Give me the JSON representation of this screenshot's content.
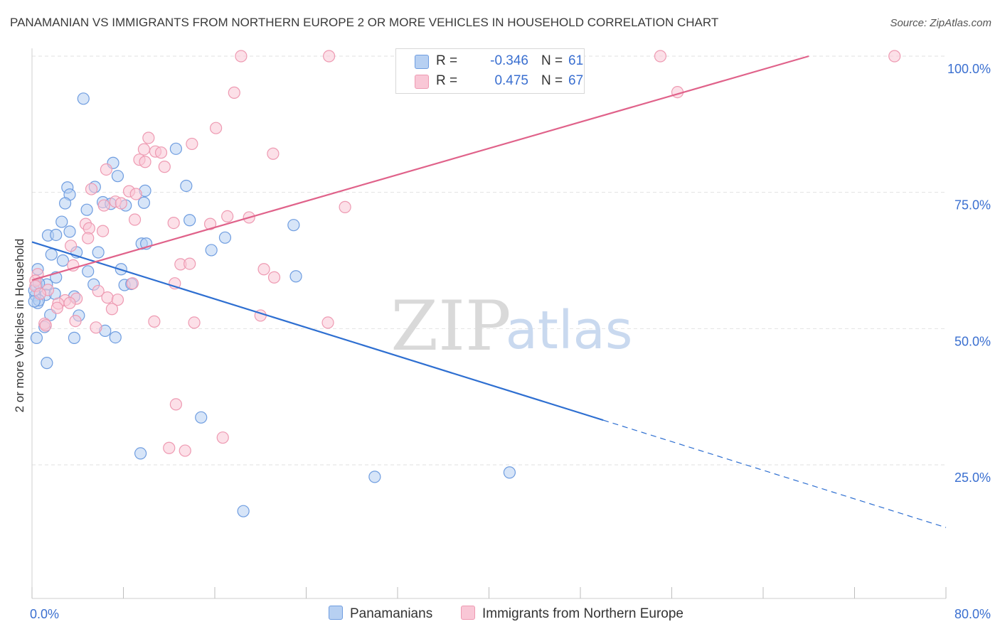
{
  "title": "PANAMANIAN VS IMMIGRANTS FROM NORTHERN EUROPE 2 OR MORE VEHICLES IN HOUSEHOLD CORRELATION CHART",
  "source": "Source: ZipAtlas.com",
  "watermark": {
    "zip": "ZIP",
    "atlas": "atlas"
  },
  "colors": {
    "blue_fill": "#b7d0f2",
    "blue_stroke": "#6f9de0",
    "blue_line": "#2e6fd1",
    "pink_fill": "#f9c7d6",
    "pink_stroke": "#ee9ab2",
    "pink_line": "#e0628a",
    "tick_label": "#3a6fd0",
    "grid": "#e2e2e2"
  },
  "legend": {
    "rows": [
      {
        "r_label": "R =",
        "r_value": "-0.346",
        "n_label": "N =",
        "n_value": "61",
        "color": "blue"
      },
      {
        "r_label": "R =",
        "r_value": "0.475",
        "n_label": "N =",
        "n_value": "67",
        "color": "pink"
      }
    ]
  },
  "bottom_legend": [
    "Panamanians",
    "Immigrants from Northern Europe"
  ],
  "chart_data": {
    "type": "scatter",
    "title": "PANAMANIAN VS IMMIGRANTS FROM NORTHERN EUROPE 2 OR MORE VEHICLES IN HOUSEHOLD CORRELATION CHART",
    "xlabel": "",
    "ylabel": "2 or more Vehicles in Household",
    "xlim": [
      0,
      80
    ],
    "ylim": [
      0,
      105
    ],
    "x_tick_labels": [
      "0.0%",
      "80.0%"
    ],
    "y_ticks": [
      25,
      50,
      75,
      100
    ],
    "y_tick_labels": [
      "25.0%",
      "50.0%",
      "75.0%",
      "100.0%"
    ],
    "grid": "horizontal dashed",
    "legend_position": "top-center",
    "series": [
      {
        "name": "Panamanians",
        "color": "blue",
        "r": -0.346,
        "n": 61,
        "trend": {
          "x0": 0,
          "y0": 65.9,
          "x1": 50,
          "y1": 33.2,
          "dashed_to_x": 80,
          "dashed_to_y": 13.5
        },
        "points": [
          [
            4.5,
            92.2
          ],
          [
            7.1,
            80.4
          ],
          [
            12.6,
            83.0
          ],
          [
            7.5,
            78.0
          ],
          [
            13.5,
            76.2
          ],
          [
            3.1,
            75.9
          ],
          [
            5.5,
            76.0
          ],
          [
            3.3,
            74.6
          ],
          [
            9.9,
            75.3
          ],
          [
            6.2,
            73.2
          ],
          [
            4.8,
            71.8
          ],
          [
            2.9,
            73.0
          ],
          [
            6.9,
            72.9
          ],
          [
            8.2,
            72.6
          ],
          [
            9.8,
            73.1
          ],
          [
            13.8,
            69.9
          ],
          [
            2.6,
            69.6
          ],
          [
            1.4,
            67.1
          ],
          [
            2.1,
            67.2
          ],
          [
            3.3,
            67.8
          ],
          [
            16.9,
            66.7
          ],
          [
            9.6,
            65.6
          ],
          [
            10.0,
            65.6
          ],
          [
            22.9,
            69.0
          ],
          [
            0.5,
            60.9
          ],
          [
            1.7,
            63.6
          ],
          [
            3.9,
            64.0
          ],
          [
            5.8,
            64.0
          ],
          [
            15.7,
            64.4
          ],
          [
            2.7,
            62.5
          ],
          [
            4.9,
            60.5
          ],
          [
            7.8,
            60.9
          ],
          [
            2.1,
            59.4
          ],
          [
            0.4,
            57.9
          ],
          [
            1.3,
            58.1
          ],
          [
            5.4,
            58.1
          ],
          [
            8.1,
            58.0
          ],
          [
            8.7,
            58.2
          ],
          [
            23.1,
            59.6
          ],
          [
            0.3,
            56.1
          ],
          [
            1.2,
            56.2
          ],
          [
            3.7,
            55.9
          ],
          [
            0.5,
            54.7
          ],
          [
            0.6,
            55.2
          ],
          [
            1.6,
            52.5
          ],
          [
            4.1,
            52.4
          ],
          [
            1.1,
            50.3
          ],
          [
            3.7,
            48.3
          ],
          [
            6.4,
            49.6
          ],
          [
            7.3,
            48.4
          ],
          [
            0.4,
            48.3
          ],
          [
            1.3,
            43.7
          ],
          [
            14.8,
            33.7
          ],
          [
            9.5,
            27.1
          ],
          [
            30.0,
            22.8
          ],
          [
            41.8,
            23.6
          ],
          [
            18.5,
            16.5
          ],
          [
            0.2,
            57.0
          ],
          [
            0.6,
            58.3
          ],
          [
            2.0,
            56.4
          ],
          [
            0.2,
            55.0
          ]
        ]
      },
      {
        "name": "Immigrants from Northern Europe",
        "color": "pink",
        "r": 0.475,
        "n": 67,
        "trend": {
          "x0": 0,
          "y0": 58.9,
          "x1": 68,
          "y1": 100.0
        },
        "points": [
          [
            18.3,
            100.0
          ],
          [
            26.0,
            100.0
          ],
          [
            55.0,
            100.0
          ],
          [
            75.5,
            100.0
          ],
          [
            17.7,
            93.3
          ],
          [
            56.5,
            93.4
          ],
          [
            16.1,
            86.8
          ],
          [
            10.2,
            85.0
          ],
          [
            14.0,
            83.9
          ],
          [
            9.8,
            82.9
          ],
          [
            10.8,
            82.5
          ],
          [
            11.3,
            82.3
          ],
          [
            21.1,
            82.1
          ],
          [
            9.4,
            81.0
          ],
          [
            9.9,
            80.6
          ],
          [
            11.6,
            79.7
          ],
          [
            6.5,
            79.2
          ],
          [
            5.2,
            75.6
          ],
          [
            8.5,
            75.2
          ],
          [
            9.1,
            74.7
          ],
          [
            7.3,
            73.3
          ],
          [
            7.8,
            73.0
          ],
          [
            6.3,
            72.6
          ],
          [
            27.4,
            72.3
          ],
          [
            17.1,
            70.6
          ],
          [
            19.0,
            70.4
          ],
          [
            9.0,
            70.0
          ],
          [
            12.4,
            69.4
          ],
          [
            15.6,
            69.2
          ],
          [
            4.7,
            69.2
          ],
          [
            6.2,
            67.9
          ],
          [
            5.0,
            68.4
          ],
          [
            4.9,
            66.6
          ],
          [
            3.4,
            65.2
          ],
          [
            3.6,
            61.6
          ],
          [
            13.0,
            61.8
          ],
          [
            13.8,
            61.9
          ],
          [
            20.3,
            60.9
          ],
          [
            21.2,
            59.4
          ],
          [
            0.5,
            60.0
          ],
          [
            12.5,
            58.3
          ],
          [
            8.8,
            58.3
          ],
          [
            0.3,
            58.8
          ],
          [
            0.3,
            57.8
          ],
          [
            1.4,
            57.1
          ],
          [
            5.8,
            56.9
          ],
          [
            0.7,
            56.4
          ],
          [
            6.6,
            55.7
          ],
          [
            3.9,
            55.5
          ],
          [
            2.9,
            55.2
          ],
          [
            2.3,
            54.6
          ],
          [
            7.5,
            55.3
          ],
          [
            3.3,
            54.7
          ],
          [
            2.2,
            53.8
          ],
          [
            7.0,
            53.6
          ],
          [
            20.0,
            52.4
          ],
          [
            3.8,
            51.4
          ],
          [
            10.7,
            51.3
          ],
          [
            14.2,
            51.1
          ],
          [
            25.9,
            51.1
          ],
          [
            1.1,
            50.9
          ],
          [
            1.2,
            50.6
          ],
          [
            5.6,
            50.2
          ],
          [
            12.6,
            36.1
          ],
          [
            16.7,
            30.0
          ],
          [
            12.0,
            28.1
          ],
          [
            13.4,
            27.6
          ]
        ]
      }
    ]
  }
}
